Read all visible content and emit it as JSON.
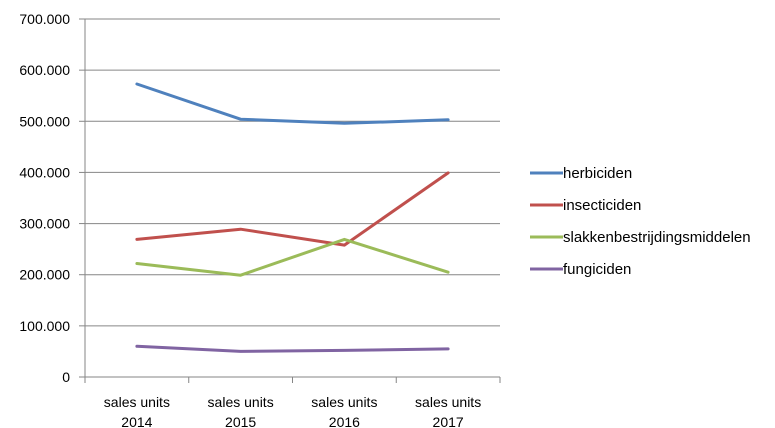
{
  "chart_data": {
    "type": "line",
    "categories": [
      [
        "sales units",
        "2014"
      ],
      [
        "sales units",
        "2015"
      ],
      [
        "sales units",
        "2016"
      ],
      [
        "sales units",
        "2017"
      ]
    ],
    "ylim": [
      0,
      700000
    ],
    "yticks": [
      0,
      100000,
      200000,
      300000,
      400000,
      500000,
      600000,
      700000
    ],
    "ytick_labels": [
      "0",
      "100.000",
      "200.000",
      "300.000",
      "400.000",
      "500.000",
      "600.000",
      "700.000"
    ],
    "grid": true,
    "legend_position": "right",
    "series": [
      {
        "name": "herbiciden",
        "color": "#4f81bd",
        "values": [
          573000,
          504000,
          496000,
          503000
        ]
      },
      {
        "name": "insecticiden",
        "color": "#c0504d",
        "values": [
          269000,
          289000,
          258000,
          399000
        ]
      },
      {
        "name": "slakkenbestrijdingsmiddelen",
        "color": "#9bbb59",
        "values": [
          222000,
          199000,
          269000,
          205000
        ]
      },
      {
        "name": "fungiciden",
        "color": "#8064a2",
        "values": [
          60000,
          50000,
          52000,
          55000
        ]
      }
    ]
  }
}
